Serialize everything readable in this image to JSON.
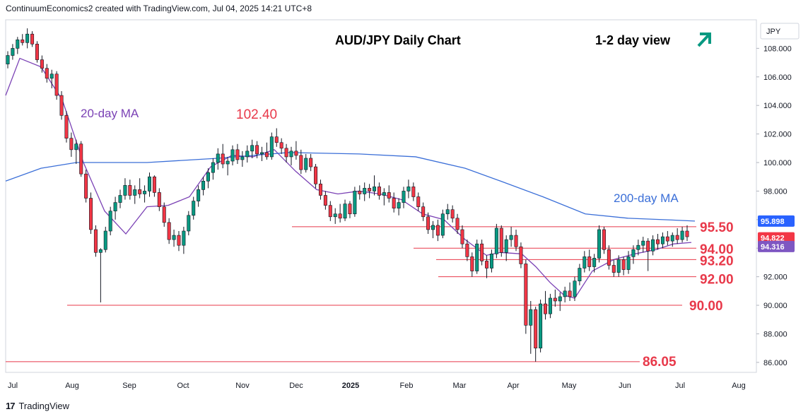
{
  "header": {
    "attribution": "ContinuumEconomics2 created with TradingView.com, Jul 04, 2025 14:21 UTC+8"
  },
  "footer": {
    "brand": "TradingView",
    "logo_icon": "tradingview-logo-icon"
  },
  "chart_data": {
    "type": "candlestick",
    "title": "AUD/JPY Daily Chart",
    "view_label": "1-2 day view",
    "view_icon": "arrow-up-right-icon",
    "currency": "JPY",
    "ylim": [
      85.3,
      110.0
    ],
    "y_ticks": [
      "108.000",
      "106.000",
      "104.000",
      "102.000",
      "100.000",
      "98.000",
      "96.000",
      "94.000",
      "92.000",
      "90.000",
      "88.000",
      "86.000"
    ],
    "x_ticks": [
      "Jul",
      "Aug",
      "Sep",
      "Oct",
      "Nov",
      "Dec",
      "2025",
      "Feb",
      "Mar",
      "Apr",
      "May",
      "Jun",
      "Jul",
      "Aug"
    ],
    "levels": [
      {
        "label": "95.50",
        "value": 95.5
      },
      {
        "label": "94.00",
        "value": 94.0
      },
      {
        "label": "93.20",
        "value": 93.2
      },
      {
        "label": "92.00",
        "value": 92.0
      },
      {
        "label": "90.00",
        "value": 90.0
      },
      {
        "label": "86.05",
        "value": 86.05
      }
    ],
    "annotations": {
      "ma20": "20-day MA",
      "ma200": "200-day MA",
      "peak": "102.40"
    },
    "price_tags": [
      {
        "label": "95.898",
        "value": 95.898,
        "color": "#2962ff"
      },
      {
        "label": "94.822",
        "value": 94.822,
        "color": "#f23645"
      },
      {
        "label": "94.316",
        "value": 94.316,
        "color": "#7e57c2"
      }
    ],
    "series": [
      {
        "name": "AUD/JPY",
        "kind": "ohlc",
        "points": [
          [
            106.9,
            107.8,
            106.6,
            107.5
          ],
          [
            107.5,
            108.3,
            107.2,
            108.0
          ],
          [
            108.0,
            108.8,
            107.6,
            108.6
          ],
          [
            108.6,
            109.0,
            108.2,
            108.4
          ],
          [
            108.4,
            109.4,
            108.0,
            109.0
          ],
          [
            109.0,
            109.2,
            108.1,
            108.3
          ],
          [
            108.3,
            108.5,
            107.0,
            107.2
          ],
          [
            107.2,
            107.5,
            106.3,
            106.6
          ],
          [
            106.6,
            106.9,
            105.6,
            105.9
          ],
          [
            105.9,
            106.5,
            105.2,
            106.2
          ],
          [
            106.2,
            106.4,
            104.4,
            104.7
          ],
          [
            104.7,
            105.0,
            103.0,
            103.3
          ],
          [
            103.3,
            103.6,
            101.4,
            101.7
          ],
          [
            101.7,
            102.1,
            100.4,
            100.9
          ],
          [
            100.9,
            101.6,
            99.9,
            101.3
          ],
          [
            101.3,
            101.5,
            99.0,
            99.2
          ],
          [
            99.2,
            99.5,
            97.2,
            97.5
          ],
          [
            97.5,
            97.9,
            95.0,
            95.3
          ],
          [
            95.3,
            95.6,
            93.4,
            93.7
          ],
          [
            93.7,
            94.0,
            90.2,
            93.9
          ],
          [
            93.9,
            95.5,
            93.7,
            95.2
          ],
          [
            95.2,
            96.9,
            94.9,
            96.6
          ],
          [
            96.6,
            97.6,
            96.0,
            97.2
          ],
          [
            97.2,
            98.1,
            96.8,
            97.7
          ],
          [
            97.7,
            98.9,
            97.4,
            98.4
          ],
          [
            98.4,
            98.8,
            97.4,
            97.7
          ],
          [
            97.7,
            98.4,
            97.1,
            98.1
          ],
          [
            98.1,
            98.9,
            97.5,
            97.8
          ],
          [
            97.8,
            98.4,
            97.2,
            98.0
          ],
          [
            98.0,
            99.3,
            97.6,
            99.0
          ],
          [
            99.0,
            99.1,
            97.6,
            97.9
          ],
          [
            97.9,
            98.2,
            96.6,
            96.9
          ],
          [
            96.9,
            97.2,
            95.5,
            95.8
          ],
          [
            95.8,
            96.1,
            94.3,
            94.6
          ],
          [
            94.6,
            95.3,
            94.1,
            94.9
          ],
          [
            94.9,
            95.2,
            93.8,
            94.2
          ],
          [
            94.2,
            95.5,
            93.6,
            95.2
          ],
          [
            95.2,
            96.6,
            94.9,
            96.3
          ],
          [
            96.3,
            97.6,
            96.0,
            97.3
          ],
          [
            97.3,
            98.4,
            96.9,
            98.1
          ],
          [
            98.1,
            99.0,
            97.7,
            98.7
          ],
          [
            98.7,
            99.6,
            98.2,
            99.3
          ],
          [
            99.3,
            100.3,
            98.8,
            100.0
          ],
          [
            100.0,
            101.0,
            99.5,
            100.6
          ],
          [
            100.6,
            101.3,
            99.6,
            99.9
          ],
          [
            99.9,
            100.4,
            99.1,
            100.1
          ],
          [
            100.1,
            101.2,
            99.8,
            100.9
          ],
          [
            100.9,
            101.3,
            99.9,
            100.2
          ],
          [
            100.2,
            100.8,
            99.7,
            100.4
          ],
          [
            100.4,
            101.2,
            100.0,
            100.8
          ],
          [
            100.8,
            101.6,
            100.3,
            101.2
          ],
          [
            101.2,
            101.5,
            100.3,
            100.6
          ],
          [
            100.6,
            101.1,
            100.1,
            100.7
          ],
          [
            100.7,
            101.4,
            100.2,
            100.4
          ],
          [
            100.4,
            102.1,
            100.2,
            101.8
          ],
          [
            101.8,
            102.4,
            101.1,
            101.4
          ],
          [
            101.4,
            101.7,
            100.6,
            101.0
          ],
          [
            101.0,
            101.3,
            100.0,
            100.4
          ],
          [
            100.4,
            101.1,
            99.8,
            100.8
          ],
          [
            100.8,
            101.5,
            100.2,
            100.5
          ],
          [
            100.5,
            100.9,
            99.2,
            99.5
          ],
          [
            99.5,
            100.6,
            99.3,
            100.3
          ],
          [
            100.3,
            100.6,
            99.4,
            99.7
          ],
          [
            99.7,
            99.9,
            98.2,
            98.5
          ],
          [
            98.5,
            98.8,
            97.4,
            97.7
          ],
          [
            97.7,
            98.0,
            96.7,
            97.0
          ],
          [
            97.0,
            97.3,
            95.9,
            96.2
          ],
          [
            96.2,
            96.8,
            95.7,
            96.4
          ],
          [
            96.4,
            97.1,
            95.8,
            96.1
          ],
          [
            96.1,
            97.4,
            95.9,
            97.1
          ],
          [
            97.1,
            97.3,
            96.1,
            96.4
          ],
          [
            96.4,
            98.3,
            96.2,
            98.0
          ],
          [
            98.0,
            98.4,
            97.4,
            97.8
          ],
          [
            97.8,
            98.6,
            97.3,
            98.2
          ],
          [
            98.2,
            98.5,
            97.5,
            98.0
          ],
          [
            98.0,
            99.1,
            97.7,
            98.3
          ],
          [
            98.3,
            98.6,
            97.4,
            97.7
          ],
          [
            97.7,
            98.2,
            97.0,
            97.9
          ],
          [
            97.9,
            98.4,
            97.2,
            97.5
          ],
          [
            97.5,
            97.9,
            96.5,
            96.8
          ],
          [
            96.8,
            97.5,
            96.3,
            97.2
          ],
          [
            97.2,
            98.3,
            96.8,
            98.0
          ],
          [
            98.0,
            98.8,
            97.5,
            98.3
          ],
          [
            98.3,
            98.6,
            97.3,
            97.6
          ],
          [
            97.6,
            97.9,
            96.6,
            96.9
          ],
          [
            96.9,
            97.2,
            95.9,
            96.2
          ],
          [
            96.2,
            96.5,
            95.0,
            95.3
          ],
          [
            95.3,
            95.9,
            94.7,
            95.6
          ],
          [
            95.6,
            96.0,
            94.5,
            94.9
          ],
          [
            94.9,
            96.7,
            94.7,
            96.4
          ],
          [
            96.4,
            97.1,
            96.0,
            96.7
          ],
          [
            96.7,
            97.0,
            95.8,
            96.1
          ],
          [
            96.1,
            96.4,
            95.0,
            95.3
          ],
          [
            95.3,
            95.6,
            94.0,
            94.3
          ],
          [
            94.3,
            94.6,
            93.1,
            93.4
          ],
          [
            93.4,
            93.7,
            92.0,
            92.4
          ],
          [
            92.4,
            94.6,
            92.2,
            94.3
          ],
          [
            94.3,
            94.6,
            92.8,
            93.1
          ],
          [
            93.1,
            93.5,
            91.9,
            92.6
          ],
          [
            92.6,
            93.9,
            92.3,
            93.6
          ],
          [
            93.6,
            95.7,
            93.3,
            95.4
          ],
          [
            95.4,
            95.6,
            93.4,
            93.7
          ],
          [
            93.7,
            94.9,
            93.1,
            94.6
          ],
          [
            94.6,
            95.5,
            94.1,
            94.9
          ],
          [
            94.9,
            95.3,
            93.8,
            94.1
          ],
          [
            94.1,
            94.4,
            92.6,
            92.9
          ],
          [
            92.9,
            93.2,
            88.0,
            88.6
          ],
          [
            88.6,
            90.3,
            86.6,
            89.7
          ],
          [
            89.7,
            89.9,
            86.05,
            87.0
          ],
          [
            87.0,
            90.4,
            86.7,
            90.1
          ],
          [
            90.1,
            91.0,
            89.0,
            89.4
          ],
          [
            89.4,
            90.8,
            89.1,
            90.5
          ],
          [
            90.5,
            91.1,
            89.9,
            90.3
          ],
          [
            90.3,
            90.9,
            89.6,
            90.6
          ],
          [
            90.6,
            91.3,
            90.2,
            91.0
          ],
          [
            91.0,
            91.6,
            90.3,
            90.6
          ],
          [
            90.6,
            92.0,
            90.3,
            91.7
          ],
          [
            91.7,
            92.9,
            91.4,
            92.6
          ],
          [
            92.6,
            93.8,
            92.3,
            93.4
          ],
          [
            93.4,
            93.9,
            92.4,
            92.7
          ],
          [
            92.7,
            93.6,
            92.3,
            93.3
          ],
          [
            93.3,
            95.6,
            93.0,
            95.3
          ],
          [
            95.3,
            95.5,
            93.6,
            93.9
          ],
          [
            93.9,
            94.2,
            92.5,
            92.8
          ],
          [
            92.8,
            93.2,
            92.0,
            92.3
          ],
          [
            92.3,
            93.5,
            92.0,
            93.2
          ],
          [
            93.2,
            93.4,
            92.1,
            92.5
          ],
          [
            92.5,
            93.8,
            92.2,
            93.4
          ],
          [
            93.4,
            94.2,
            92.9,
            93.9
          ],
          [
            93.9,
            94.6,
            93.5,
            94.2
          ],
          [
            94.2,
            94.8,
            93.7,
            94.5
          ],
          [
            94.5,
            94.7,
            92.4,
            93.8
          ],
          [
            93.8,
            94.9,
            93.5,
            94.6
          ],
          [
            94.6,
            95.0,
            93.9,
            94.3
          ],
          [
            94.3,
            95.1,
            94.0,
            94.8
          ],
          [
            94.8,
            95.2,
            94.2,
            94.5
          ],
          [
            94.5,
            95.1,
            94.1,
            94.9
          ],
          [
            94.9,
            95.4,
            94.3,
            94.6
          ],
          [
            94.6,
            95.5,
            94.4,
            95.2
          ],
          [
            95.2,
            95.6,
            94.5,
            94.8
          ]
        ]
      },
      {
        "name": "20-day MA",
        "kind": "line",
        "color": "#7b42b5",
        "points": [
          [
            0,
            104.7
          ],
          [
            20,
            107.3
          ],
          [
            50,
            106.7
          ],
          [
            80,
            104.4
          ],
          [
            110,
            100.0
          ],
          [
            140,
            96.6
          ],
          [
            170,
            95.0
          ],
          [
            200,
            96.9
          ],
          [
            230,
            97.0
          ],
          [
            260,
            97.6
          ],
          [
            290,
            99.7
          ],
          [
            320,
            100.5
          ],
          [
            350,
            100.4
          ],
          [
            380,
            100.9
          ],
          [
            410,
            99.4
          ],
          [
            440,
            98.1
          ],
          [
            470,
            97.8
          ],
          [
            500,
            98.0
          ],
          [
            530,
            97.8
          ],
          [
            560,
            97.4
          ],
          [
            590,
            96.4
          ],
          [
            620,
            96.0
          ],
          [
            650,
            94.6
          ],
          [
            680,
            93.5
          ],
          [
            700,
            93.7
          ],
          [
            730,
            93.6
          ],
          [
            750,
            92.7
          ],
          [
            770,
            91.6
          ],
          [
            790,
            90.7
          ],
          [
            805,
            90.5
          ],
          [
            830,
            92.4
          ],
          [
            860,
            93.2
          ],
          [
            890,
            93.6
          ],
          [
            920,
            93.9
          ],
          [
            945,
            94.3
          ],
          [
            970,
            94.4
          ]
        ]
      },
      {
        "name": "200-day MA",
        "kind": "line",
        "color": "#3b6fd8",
        "points": [
          [
            0,
            98.7
          ],
          [
            50,
            99.6
          ],
          [
            100,
            100.0
          ],
          [
            200,
            100.0
          ],
          [
            300,
            100.3
          ],
          [
            400,
            100.7
          ],
          [
            500,
            100.6
          ],
          [
            580,
            100.4
          ],
          [
            650,
            99.6
          ],
          [
            700,
            98.7
          ],
          [
            760,
            97.6
          ],
          [
            820,
            96.4
          ],
          [
            880,
            96.1
          ],
          [
            940,
            95.98
          ],
          [
            975,
            95.9
          ]
        ]
      }
    ]
  }
}
